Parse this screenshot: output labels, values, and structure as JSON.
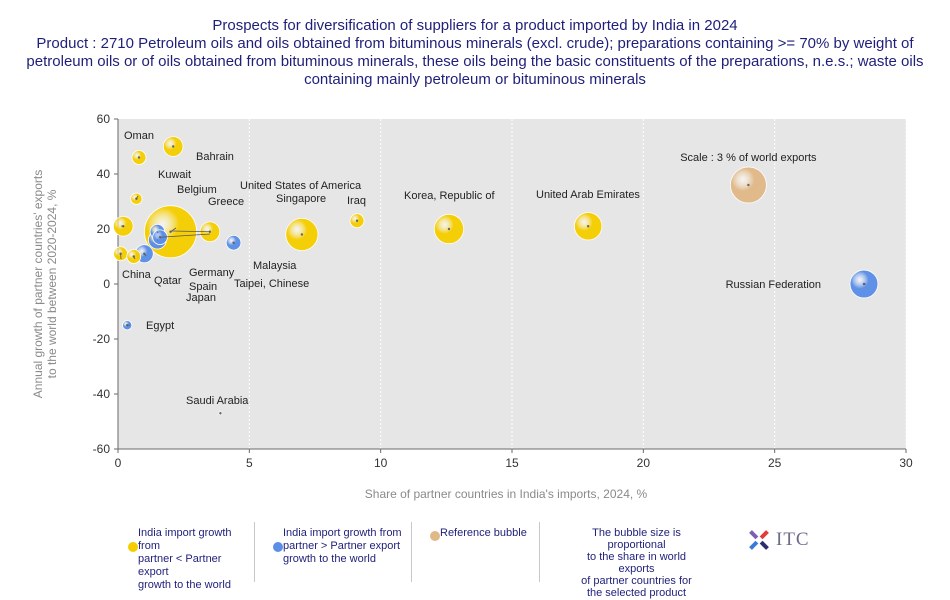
{
  "title": "Prospects for diversification of suppliers for a product imported by India in 2024",
  "subtitle": "Product : 2710 Petroleum oils and oils obtained from bituminous minerals (excl. crude); preparations containing >= 70% by weight of petroleum oils or of oils obtained from bituminous minerals, these oils being the basic constituents of the preparations, n.e.s.; waste oils containing mainly petroleum or bituminous minerals",
  "colors": {
    "yellow_bubble": "#f5cd00",
    "blue_bubble": "#5b8ee6",
    "reference_bubble": "#e0b988",
    "plot_background": "#e6e6e6",
    "axis_text": "#8a8a8a",
    "title_text": "#1f1f7a"
  },
  "legend": {
    "items": [
      {
        "label_lines": [
          "India import growth from",
          "partner < Partner export",
          "growth to the world"
        ],
        "color": "#f5cd00",
        "width": 145
      },
      {
        "label_lines": [
          "India import growth from",
          "partner > Partner export",
          "growth to the world"
        ],
        "color": "#5b8ee6",
        "width": 157
      },
      {
        "label_lines": [
          "Reference bubble"
        ],
        "color": "#e0b988",
        "width": 128
      }
    ],
    "note_lines": [
      "The bubble size is proportional",
      "to the share in world exports",
      "of partner countries for",
      "the selected product"
    ]
  },
  "logo": {
    "text": "ITC"
  },
  "chart_data": {
    "type": "scatter",
    "xlabel": "Share of partner countries in India's imports, 2024, %",
    "ylabel_lines": [
      "Annual growth of partner countries' exports",
      "to the world between 2020-2024, %"
    ],
    "xlim": [
      0,
      30
    ],
    "ylim": [
      -60,
      60
    ],
    "x_ticks": [
      0,
      5,
      10,
      15,
      20,
      25,
      30
    ],
    "y_ticks": [
      -60,
      -40,
      -20,
      0,
      20,
      40,
      60
    ],
    "grid": "vertical dashed",
    "reference_label": "Scale : 3 % of world exports",
    "points": [
      {
        "name": "Oman",
        "x": 0.8,
        "y": 46,
        "size": 0.45,
        "group": "yellow"
      },
      {
        "name": "Bahrain",
        "x": 2.1,
        "y": 50,
        "size": 0.9,
        "group": "yellow"
      },
      {
        "name": "Kuwait",
        "x": 0.7,
        "y": 31,
        "size": 0.3,
        "group": "yellow"
      },
      {
        "name": "Belgium",
        "x": 0.2,
        "y": 21,
        "size": 0.9,
        "group": "yellow"
      },
      {
        "name": "United States of America",
        "x": 2.0,
        "y": 19,
        "size": 6.3,
        "group": "yellow"
      },
      {
        "name": "Greece",
        "x": 3.5,
        "y": 19,
        "size": 0.9,
        "group": "yellow"
      },
      {
        "name": "Singapore",
        "x": 7.0,
        "y": 18,
        "size": 2.4,
        "group": "yellow"
      },
      {
        "name": "Iraq",
        "x": 9.1,
        "y": 23,
        "size": 0.45,
        "group": "yellow"
      },
      {
        "name": "Korea, Republic of",
        "x": 12.6,
        "y": 20,
        "size": 2.0,
        "group": "yellow"
      },
      {
        "name": "United Arab Emirates",
        "x": 17.9,
        "y": 21,
        "size": 1.75,
        "group": "yellow"
      },
      {
        "name": "China",
        "x": 0.1,
        "y": 11,
        "size": 0.45,
        "group": "yellow"
      },
      {
        "name": "Qatar",
        "x": 0.6,
        "y": 10,
        "size": 0.45,
        "group": "yellow"
      },
      {
        "name": "Germany",
        "x": 1.5,
        "y": 19,
        "size": 0.5,
        "group": "blue"
      },
      {
        "name": "Spain",
        "x": 1.0,
        "y": 11,
        "size": 0.75,
        "group": "blue"
      },
      {
        "name": "Japan",
        "x": 1.5,
        "y": 16,
        "size": 0.75,
        "group": "blue"
      },
      {
        "name": "Taipei, Chinese",
        "x": 1.6,
        "y": 17,
        "size": 0.5,
        "group": "blue"
      },
      {
        "name": "Malaysia",
        "x": 4.4,
        "y": 15,
        "size": 0.5,
        "group": "blue"
      },
      {
        "name": "Russian Federation",
        "x": 28.4,
        "y": 0,
        "size": 1.8,
        "group": "blue"
      },
      {
        "name": "Egypt",
        "x": 0.35,
        "y": -15,
        "size": 0.2,
        "group": "blue"
      },
      {
        "name": "Saudi Arabia",
        "x": 3.9,
        "y": -47,
        "size": 0.0,
        "group": "blue"
      },
      {
        "name": "Reference",
        "x": 24.0,
        "y": 36,
        "size": 3.0,
        "group": "reference"
      }
    ]
  }
}
